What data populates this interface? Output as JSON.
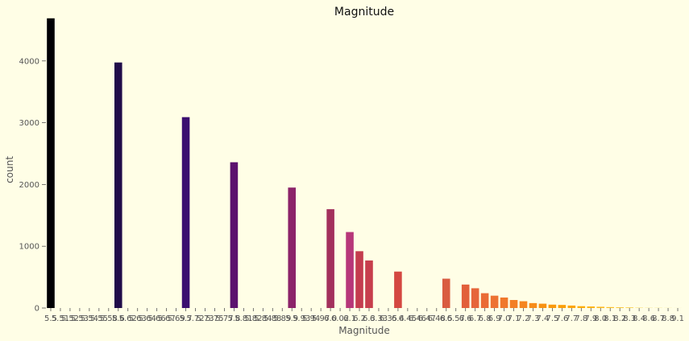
{
  "chart_data": {
    "type": "bar",
    "title": "Magnitude",
    "xlabel": "Magnitude",
    "ylabel": "count",
    "ylim": [
      0,
      4700
    ],
    "yticks": [
      0,
      1000,
      2000,
      3000,
      4000
    ],
    "grid": false,
    "categories": [
      "5.5",
      "5.51",
      "5.52",
      "5.53",
      "5.54",
      "5.55",
      "5.58",
      "5.6",
      "5.62",
      "5.63",
      "5.64",
      "5.66",
      "5.67",
      "5.69",
      "5.7",
      "5.72",
      "5.73",
      "5.75",
      "5.77",
      "5.8",
      "5.81",
      "5.82",
      "5.84",
      "5.88",
      "5.89",
      "5.9",
      "5.93",
      "5.94",
      "5.97",
      "6.0",
      "6.02",
      "6.1",
      "6.2",
      "6.3",
      "6.33",
      "6.35",
      "6.4",
      "6.45",
      "6.46",
      "6.47",
      "6.48",
      "6.5",
      "6.57",
      "6.6",
      "6.7",
      "6.8",
      "6.9",
      "7.0",
      "7.1",
      "7.2",
      "7.3",
      "7.4",
      "7.5",
      "7.6",
      "7.7",
      "7.8",
      "7.9",
      "8.0",
      "8.1",
      "8.2",
      "8.3",
      "8.4",
      "8.6",
      "8.7",
      "8.8",
      "9.1"
    ],
    "values": [
      4690,
      0,
      0,
      0,
      0,
      0,
      0,
      3975,
      0,
      0,
      0,
      0,
      0,
      0,
      3090,
      0,
      0,
      0,
      0,
      2360,
      0,
      0,
      0,
      0,
      0,
      1950,
      0,
      0,
      0,
      1600,
      0,
      1230,
      920,
      770,
      0,
      0,
      590,
      0,
      0,
      0,
      0,
      475,
      0,
      380,
      320,
      240,
      200,
      170,
      130,
      110,
      80,
      70,
      55,
      50,
      40,
      30,
      25,
      20,
      15,
      12,
      10,
      5,
      3,
      3,
      2,
      1
    ],
    "colors": [
      "#000004",
      "#020210",
      "#06051e",
      "#0b072c",
      "#110a3a",
      "#170c48",
      "#1e0c56",
      "#210c4a",
      "#290b55",
      "#320a5e",
      "#3a0963",
      "#420a68",
      "#4a0c6b",
      "#520e6d",
      "#3b0f70",
      "#5a116e",
      "#62146e",
      "#6a176e",
      "#721a6e",
      "#5c126e",
      "#791c6d",
      "#801f6c",
      "#88226a",
      "#902568",
      "#982766",
      "#8c2369",
      "#9f2a63",
      "#a72d5f",
      "#ae305c",
      "#a3305c",
      "#b63458",
      "#b73779",
      "#c43c4e",
      "#c73e4c",
      "#ca3e4a",
      "#d04545",
      "#d44842",
      "#d84c3e",
      "#dd513a",
      "#e05536",
      "#e35933",
      "#d95b41",
      "#e65e2f",
      "#e25f3b",
      "#e6653a",
      "#ea6b35",
      "#ed7232",
      "#f0782b",
      "#f37f26",
      "#f58520",
      "#f78c19",
      "#f89212",
      "#fa990c",
      "#fb9f07",
      "#fca506",
      "#fcac0a",
      "#fcb212",
      "#fcb81c",
      "#fbbe26",
      "#fac530",
      "#f9cb3a",
      "#f6d145",
      "#f5d851",
      "#f4dd5d",
      "#f3e26a",
      "#f2e878"
    ]
  }
}
